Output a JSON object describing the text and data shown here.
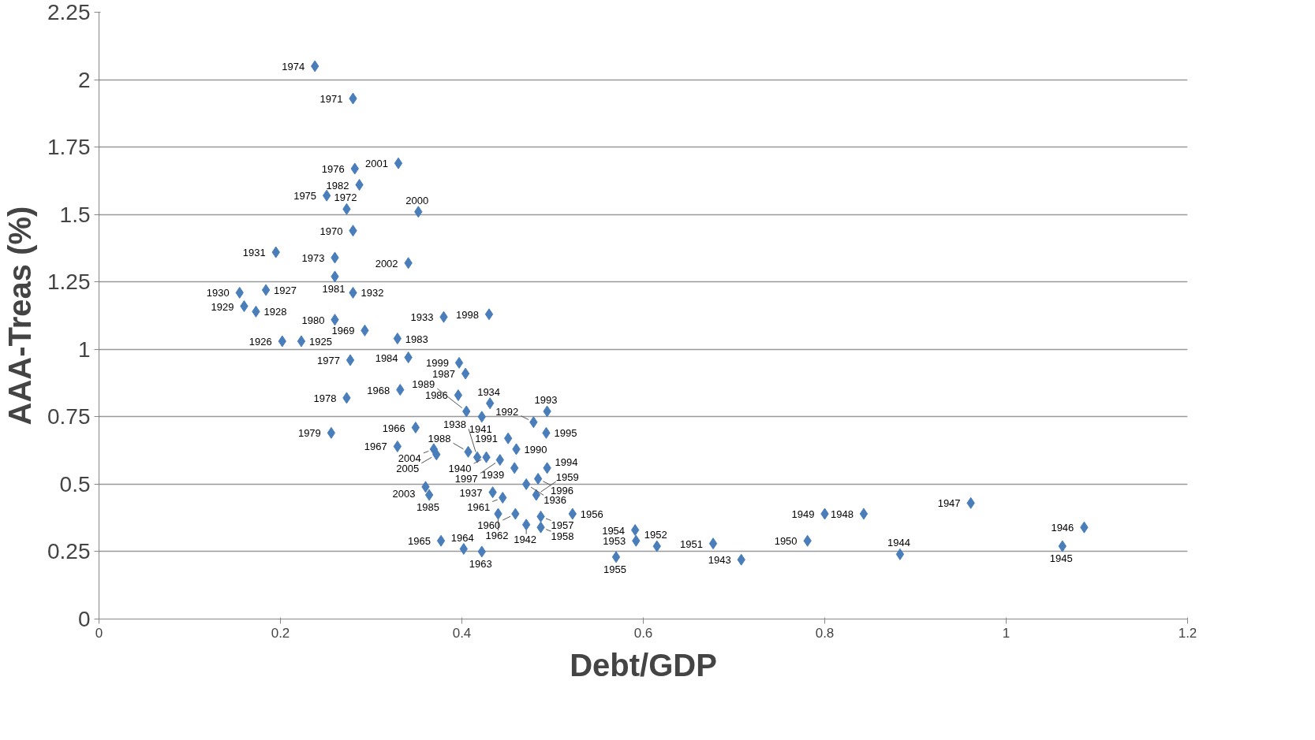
{
  "chart_data": {
    "type": "scatter",
    "xlabel": "Debt/GDP",
    "ylabel": "AAA-Treas (%)",
    "xlim": [
      0,
      1.2
    ],
    "xticks": [
      0,
      0.2,
      0.4,
      0.6,
      0.8,
      1,
      1.2
    ],
    "ylim": [
      0,
      2.25
    ],
    "yticks": [
      0,
      0.25,
      0.5,
      0.75,
      1,
      1.25,
      1.5,
      1.75,
      2,
      2.25
    ],
    "grid": "y",
    "marker": "diamond",
    "series": [
      {
        "color": "#4a7ebb",
        "x": [
          0.238,
          0.28,
          0.33,
          0.282,
          0.287,
          0.251,
          0.273,
          0.352,
          0.28,
          0.195,
          0.26,
          0.341,
          0.26,
          0.184,
          0.155,
          0.28,
          0.16,
          0.173,
          0.43,
          0.38,
          0.26,
          0.293,
          0.329,
          0.202,
          0.223,
          0.277,
          0.341,
          0.397,
          0.404,
          0.273,
          0.332,
          0.396,
          0.431,
          0.405,
          0.422,
          0.494,
          0.479,
          0.493,
          0.451,
          0.46,
          0.349,
          0.256,
          0.329,
          0.369,
          0.372,
          0.407,
          0.417,
          0.427,
          0.442,
          0.458,
          0.494,
          0.484,
          0.471,
          0.434,
          0.445,
          0.482,
          0.36,
          0.364,
          0.44,
          0.459,
          0.487,
          0.522,
          0.471,
          0.487,
          0.377,
          0.402,
          0.422,
          0.591,
          0.592,
          0.615,
          0.677,
          0.57,
          0.708,
          0.781,
          0.8,
          0.843,
          0.883,
          0.961,
          1.086,
          1.062
        ],
        "values": [
          2.05,
          1.93,
          1.69,
          1.67,
          1.61,
          1.57,
          1.52,
          1.51,
          1.44,
          1.36,
          1.34,
          1.32,
          1.27,
          1.22,
          1.21,
          1.21,
          1.16,
          1.14,
          1.13,
          1.12,
          1.11,
          1.07,
          1.04,
          1.03,
          1.03,
          0.96,
          0.97,
          0.95,
          0.91,
          0.82,
          0.85,
          0.83,
          0.8,
          0.77,
          0.75,
          0.77,
          0.73,
          0.69,
          0.67,
          0.63,
          0.71,
          0.69,
          0.64,
          0.63,
          0.61,
          0.62,
          0.6,
          0.6,
          0.59,
          0.56,
          0.56,
          0.52,
          0.5,
          0.47,
          0.45,
          0.46,
          0.49,
          0.46,
          0.39,
          0.39,
          0.38,
          0.39,
          0.35,
          0.34,
          0.29,
          0.26,
          0.25,
          0.33,
          0.29,
          0.27,
          0.28,
          0.23,
          0.22,
          0.29,
          0.39,
          0.39,
          0.24,
          0.43,
          0.34,
          0.27
        ]
      }
    ],
    "annotations": [
      {
        "text": "1974",
        "x": 0.238,
        "y": 2.05
      },
      {
        "text": "1971",
        "x": 0.28,
        "y": 1.93
      },
      {
        "text": "2001",
        "x": 0.33,
        "y": 1.69
      },
      {
        "text": "1976",
        "x": 0.282,
        "y": 1.67
      },
      {
        "text": "1982",
        "x": 0.287,
        "y": 1.61
      },
      {
        "text": "1975",
        "x": 0.251,
        "y": 1.57
      },
      {
        "text": "1972",
        "x": 0.273,
        "y": 1.52
      },
      {
        "text": "2000",
        "x": 0.352,
        "y": 1.51
      },
      {
        "text": "1970",
        "x": 0.28,
        "y": 1.44
      },
      {
        "text": "1931",
        "x": 0.195,
        "y": 1.36
      },
      {
        "text": "1973",
        "x": 0.26,
        "y": 1.34
      },
      {
        "text": "2002",
        "x": 0.341,
        "y": 1.32
      },
      {
        "text": "1981",
        "x": 0.26,
        "y": 1.27
      },
      {
        "text": "1927",
        "x": 0.184,
        "y": 1.22
      },
      {
        "text": "1930",
        "x": 0.155,
        "y": 1.21
      },
      {
        "text": "1932",
        "x": 0.28,
        "y": 1.21
      },
      {
        "text": "1929",
        "x": 0.16,
        "y": 1.16
      },
      {
        "text": "1928",
        "x": 0.173,
        "y": 1.14
      },
      {
        "text": "1998",
        "x": 0.43,
        "y": 1.13
      },
      {
        "text": "1933",
        "x": 0.38,
        "y": 1.12
      },
      {
        "text": "1980",
        "x": 0.26,
        "y": 1.11
      },
      {
        "text": "1969",
        "x": 0.293,
        "y": 1.07
      },
      {
        "text": "1983",
        "x": 0.329,
        "y": 1.04
      },
      {
        "text": "1926",
        "x": 0.202,
        "y": 1.03
      },
      {
        "text": "1925",
        "x": 0.223,
        "y": 1.03
      },
      {
        "text": "1977",
        "x": 0.277,
        "y": 0.96
      },
      {
        "text": "1984",
        "x": 0.341,
        "y": 0.97
      },
      {
        "text": "1999",
        "x": 0.397,
        "y": 0.95
      },
      {
        "text": "1987",
        "x": 0.404,
        "y": 0.91
      },
      {
        "text": "1978",
        "x": 0.273,
        "y": 0.82
      },
      {
        "text": "1968",
        "x": 0.332,
        "y": 0.85
      },
      {
        "text": "1986",
        "x": 0.396,
        "y": 0.83
      },
      {
        "text": "1934",
        "x": 0.431,
        "y": 0.8
      },
      {
        "text": "1989",
        "x": 0.405,
        "y": 0.77
      },
      {
        "text": "1941",
        "x": 0.422,
        "y": 0.75
      },
      {
        "text": "1993",
        "x": 0.494,
        "y": 0.77
      },
      {
        "text": "1992",
        "x": 0.479,
        "y": 0.73
      },
      {
        "text": "1995",
        "x": 0.493,
        "y": 0.69
      },
      {
        "text": "1991",
        "x": 0.451,
        "y": 0.67
      },
      {
        "text": "1990",
        "x": 0.46,
        "y": 0.63
      },
      {
        "text": "1966",
        "x": 0.349,
        "y": 0.71
      },
      {
        "text": "1979",
        "x": 0.256,
        "y": 0.69
      },
      {
        "text": "1967",
        "x": 0.329,
        "y": 0.64
      },
      {
        "text": "2004",
        "x": 0.369,
        "y": 0.63
      },
      {
        "text": "2005",
        "x": 0.372,
        "y": 0.61
      },
      {
        "text": "1988",
        "x": 0.407,
        "y": 0.62
      },
      {
        "text": "1938",
        "x": 0.417,
        "y": 0.6
      },
      {
        "text": "1940",
        "x": 0.427,
        "y": 0.6
      },
      {
        "text": "1997",
        "x": 0.442,
        "y": 0.59
      },
      {
        "text": "1939",
        "x": 0.458,
        "y": 0.56
      },
      {
        "text": "1994",
        "x": 0.494,
        "y": 0.56
      },
      {
        "text": "1996",
        "x": 0.484,
        "y": 0.52
      },
      {
        "text": "1936",
        "x": 0.471,
        "y": 0.5
      },
      {
        "text": "1937",
        "x": 0.434,
        "y": 0.47
      },
      {
        "text": "1961",
        "x": 0.445,
        "y": 0.45
      },
      {
        "text": "1959",
        "x": 0.482,
        "y": 0.46
      },
      {
        "text": "2003",
        "x": 0.36,
        "y": 0.49
      },
      {
        "text": "1985",
        "x": 0.364,
        "y": 0.46
      },
      {
        "text": "1962",
        "x": 0.44,
        "y": 0.39
      },
      {
        "text": "1960",
        "x": 0.459,
        "y": 0.39
      },
      {
        "text": "1957",
        "x": 0.487,
        "y": 0.38
      },
      {
        "text": "1956",
        "x": 0.522,
        "y": 0.39
      },
      {
        "text": "1942",
        "x": 0.471,
        "y": 0.35
      },
      {
        "text": "1958",
        "x": 0.487,
        "y": 0.34
      },
      {
        "text": "1965",
        "x": 0.377,
        "y": 0.29
      },
      {
        "text": "1964",
        "x": 0.402,
        "y": 0.26
      },
      {
        "text": "1963",
        "x": 0.422,
        "y": 0.25
      },
      {
        "text": "1954",
        "x": 0.591,
        "y": 0.33
      },
      {
        "text": "1953",
        "x": 0.592,
        "y": 0.29
      },
      {
        "text": "1952",
        "x": 0.615,
        "y": 0.27
      },
      {
        "text": "1951",
        "x": 0.677,
        "y": 0.28
      },
      {
        "text": "1955",
        "x": 0.57,
        "y": 0.23
      },
      {
        "text": "1943",
        "x": 0.708,
        "y": 0.22
      },
      {
        "text": "1950",
        "x": 0.781,
        "y": 0.29
      },
      {
        "text": "1949",
        "x": 0.8,
        "y": 0.39
      },
      {
        "text": "1948",
        "x": 0.843,
        "y": 0.39
      },
      {
        "text": "1944",
        "x": 0.883,
        "y": 0.24
      },
      {
        "text": "1947",
        "x": 0.961,
        "y": 0.43
      },
      {
        "text": "1946",
        "x": 1.086,
        "y": 0.34
      },
      {
        "text": "1945",
        "x": 1.062,
        "y": 0.27
      }
    ]
  }
}
